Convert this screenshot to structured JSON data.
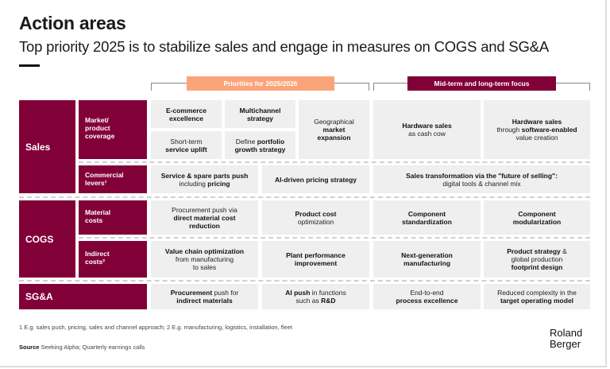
{
  "title": "Action areas",
  "subtitle": "Top priority 2025 is to stabilize sales and engage in measures on COGS and SG&A",
  "headers": {
    "priorities": "Priorities for 2025/2026",
    "midterm": "Mid-term and long-term focus",
    "priorities_color": "#fba47a",
    "midterm_color": "#820038"
  },
  "categories": {
    "sales": "Sales",
    "cogs": "COGS",
    "sga": "SG&A"
  },
  "subcategories": {
    "market": "Market/\nproduct\ncoverage",
    "commercial": "Commercial\nlevers¹",
    "material": "Material\ncosts",
    "indirect": "Indirect\ncosts²"
  },
  "cells": [
    [
      [
        "E-commerce\nexcellence",
        1
      ]
    ],
    [
      [
        "Multichannel\nstrategy",
        1
      ]
    ],
    [
      [
        "Geographical\n",
        0
      ],
      [
        "market\nexpansion",
        1
      ]
    ],
    [
      [
        "Short-term\n",
        0
      ],
      [
        "service uplift",
        1
      ]
    ],
    [
      [
        "Define ",
        0
      ],
      [
        "portfolio\ngrowth strategy",
        1
      ]
    ],
    [
      [
        "Hardware sales\n",
        1
      ],
      [
        "as cash cow",
        0
      ]
    ],
    [
      [
        "Hardware sales\n",
        1
      ],
      [
        "through ",
        0
      ],
      [
        "software-enabled\n",
        1
      ],
      [
        "value creation",
        0
      ]
    ],
    [
      [
        "Service & spare parts push\n",
        1
      ],
      [
        "including ",
        0
      ],
      [
        "pricing",
        1
      ]
    ],
    [
      [
        "AI-driven pricing strategy",
        1
      ]
    ],
    [
      [
        "Sales transformation via the \"future of selling\":\n",
        1
      ],
      [
        "digital tools & channel mix",
        0
      ]
    ],
    [
      [
        "Procurement push via\n",
        0
      ],
      [
        "direct material cost\nreduction",
        1
      ]
    ],
    [
      [
        "Product cost\n",
        1
      ],
      [
        "optimization",
        0
      ]
    ],
    [
      [
        "Component\nstandardization",
        1
      ]
    ],
    [
      [
        "Component\nmodularization",
        1
      ]
    ],
    [
      [
        "Value chain optimization\n",
        1
      ],
      [
        "from manufacturing\nto sales",
        0
      ]
    ],
    [
      [
        "Plant performance\nimprovement",
        1
      ]
    ],
    [
      [
        "Next-generation\nmanufacturing",
        1
      ]
    ],
    [
      [
        "Product strategy",
        1
      ],
      [
        " &\nglobal production\n",
        0
      ],
      [
        "footprint design",
        1
      ]
    ],
    [
      [
        "Procurement",
        1
      ],
      [
        " push for\n",
        0
      ],
      [
        "indirect materials",
        1
      ]
    ],
    [
      [
        "AI push",
        1
      ],
      [
        " in functions\nsuch as ",
        0
      ],
      [
        "R&D",
        1
      ]
    ],
    [
      [
        "End-to-end\n",
        0
      ],
      [
        "process excellence",
        1
      ]
    ],
    [
      [
        "Reduced complexity in the\n",
        0
      ],
      [
        "target operating model",
        1
      ]
    ]
  ],
  "footnote": "1 E.g. sales push, pricing, sales and channel approach; 2  E.g. manufacturing, logistics, installation, fleet",
  "source_label": "Source",
  "source_text": " Seeking Alpha; Quarterly earnings calls",
  "logo": "Roland\nBerger"
}
